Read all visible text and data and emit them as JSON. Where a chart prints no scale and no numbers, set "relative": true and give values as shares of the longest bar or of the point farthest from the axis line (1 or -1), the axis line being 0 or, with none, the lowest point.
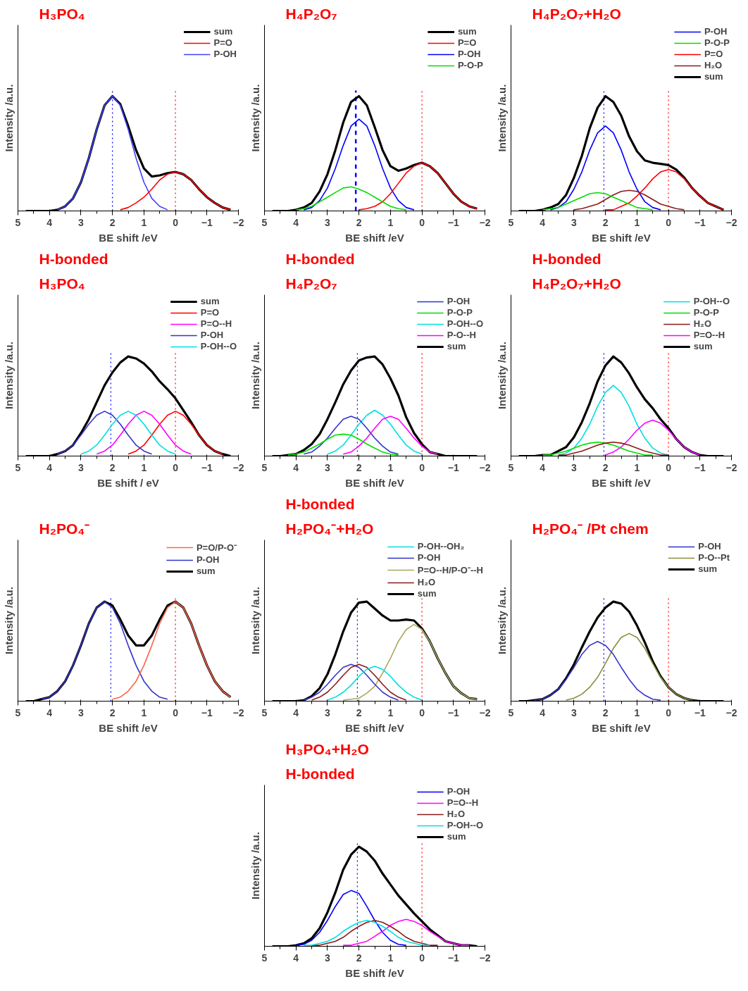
{
  "chart_data": [
    {
      "type": "line",
      "title": "H₃PO₄",
      "xlabel": "BE shift /eV",
      "ylabel": "Intensity /a.u.",
      "relative": true,
      "xlim": [
        5,
        -2
      ],
      "xticks": [
        5,
        4,
        3,
        2,
        1,
        0,
        -1,
        -2
      ],
      "legend": "top right",
      "x": [
        4.75,
        4.5,
        4.25,
        4,
        3.75,
        3.5,
        3.25,
        3,
        2.75,
        2.5,
        2.25,
        2,
        1.75,
        1.5,
        1.25,
        1,
        0.75,
        0.5,
        0.25,
        0,
        -0.25,
        -0.5,
        -0.75,
        -1,
        -1.25,
        -1.5,
        -1.75
      ],
      "ref_lines": [
        {
          "axis": "x",
          "value": 2.0,
          "color": "#0000ff",
          "line_style": "dotted"
        },
        {
          "axis": "x",
          "value": 0,
          "color": "#ff0000",
          "line_style": "dotted"
        }
      ],
      "series": [
        {
          "name": "sum",
          "color": "#000000",
          "values": [
            0,
            0,
            0,
            0,
            0.01,
            0.04,
            0.11,
            0.25,
            0.46,
            0.71,
            0.92,
            1,
            0.93,
            0.74,
            0.53,
            0.37,
            0.3,
            0.31,
            0.33,
            0.34,
            0.32,
            0.27,
            0.19,
            0.12,
            0.07,
            0.03,
            0.01
          ]
        },
        {
          "name": "P=O",
          "color": "#ff0000",
          "values": [
            null,
            null,
            null,
            null,
            null,
            null,
            null,
            null,
            null,
            null,
            null,
            null,
            0.01,
            0.03,
            0.07,
            0.12,
            0.19,
            0.27,
            0.32,
            0.34,
            0.32,
            0.27,
            0.19,
            0.12,
            0.07,
            0.03,
            0.01
          ]
        },
        {
          "name": "P-OH",
          "color": "#4040ff",
          "values": [
            null,
            null,
            null,
            null,
            0.01,
            0.04,
            0.11,
            0.25,
            0.46,
            0.71,
            0.92,
            1,
            0.92,
            0.71,
            0.46,
            0.25,
            0.11,
            0.04,
            0.01,
            null,
            null,
            null,
            null,
            null,
            null,
            null,
            null
          ]
        }
      ]
    },
    {
      "type": "line",
      "title": "H₄P₂O₇",
      "xlabel": "BE shift /eV",
      "ylabel": "Intensity /a.u.",
      "relative": true,
      "xlim": [
        5,
        -2
      ],
      "xticks": [
        5,
        4,
        3,
        2,
        1,
        0,
        -1,
        -2
      ],
      "legend": "top right",
      "x": [
        4.75,
        4.5,
        4.25,
        4,
        3.75,
        3.5,
        3.25,
        3,
        2.75,
        2.5,
        2.25,
        2,
        1.75,
        1.5,
        1.25,
        1,
        0.75,
        0.5,
        0.25,
        0,
        -0.25,
        -0.5,
        -0.75,
        -1,
        -1.25,
        -1.5,
        -1.75
      ],
      "ref_lines": [
        {
          "axis": "x",
          "value": 2.1,
          "color": "#0000ff",
          "line_style": "dashed"
        },
        {
          "axis": "x",
          "value": 0,
          "color": "#ff0000",
          "line_style": "dotted"
        }
      ],
      "series": [
        {
          "name": "sum",
          "color": "#000000",
          "values": [
            0,
            0,
            0,
            0.01,
            0.03,
            0.07,
            0.17,
            0.32,
            0.53,
            0.77,
            0.95,
            1,
            0.92,
            0.73,
            0.53,
            0.39,
            0.35,
            0.37,
            0.4,
            0.42,
            0.39,
            0.33,
            0.24,
            0.15,
            0.08,
            0.04,
            0.02
          ]
        },
        {
          "name": "P=O",
          "color": "#ff0000",
          "values": [
            null,
            null,
            null,
            null,
            null,
            null,
            null,
            null,
            null,
            null,
            null,
            0.01,
            0.02,
            0.04,
            0.08,
            0.15,
            0.24,
            0.33,
            0.39,
            0.42,
            0.39,
            0.33,
            0.24,
            0.15,
            0.08,
            0.04,
            0.02
          ]
        },
        {
          "name": "P-OH",
          "color": "#0000ff",
          "values": [
            null,
            null,
            null,
            null,
            0.01,
            0.03,
            0.09,
            0.2,
            0.37,
            0.57,
            0.74,
            0.8,
            0.74,
            0.57,
            0.37,
            0.2,
            0.09,
            0.03,
            0.01,
            null,
            null,
            null,
            null,
            null,
            null,
            null,
            null
          ]
        },
        {
          "name": "P-O-P",
          "color": "#00dd00",
          "values": [
            null,
            null,
            null,
            0.01,
            0.02,
            0.04,
            0.08,
            0.12,
            0.16,
            0.2,
            0.21,
            0.19,
            0.16,
            0.12,
            0.08,
            0.04,
            0.02,
            0.01,
            null,
            null,
            null,
            null,
            null,
            null,
            null,
            null,
            null
          ]
        }
      ]
    },
    {
      "type": "line",
      "title": "H₄P₂O₇+H₂O",
      "xlabel": "BE shift /eV",
      "ylabel": "Intensity /a.u.",
      "relative": true,
      "xlim": [
        5,
        -2
      ],
      "xticks": [
        5,
        4,
        3,
        2,
        1,
        0,
        -1,
        -2
      ],
      "legend": "top right",
      "x": [
        4.75,
        4.5,
        4.25,
        4,
        3.75,
        3.5,
        3.25,
        3,
        2.75,
        2.5,
        2.25,
        2,
        1.75,
        1.5,
        1.25,
        1,
        0.75,
        0.5,
        0.25,
        0,
        -0.25,
        -0.5,
        -0.75,
        -1,
        -1.25,
        -1.5,
        -1.75
      ],
      "ref_lines": [
        {
          "axis": "x",
          "value": 2.05,
          "color": "#0000ff",
          "line_style": "dotted"
        },
        {
          "axis": "x",
          "value": 0,
          "color": "#ff0000",
          "line_style": "dotted"
        }
      ],
      "series": [
        {
          "name": "P-OH",
          "color": "#0000ff",
          "values": [
            null,
            null,
            null,
            null,
            0.01,
            0.03,
            0.08,
            0.19,
            0.34,
            0.53,
            0.68,
            0.74,
            0.68,
            0.53,
            0.34,
            0.19,
            0.08,
            0.03,
            0.01,
            null,
            null,
            null,
            null,
            null,
            null,
            null,
            null
          ]
        },
        {
          "name": "P-O-P",
          "color": "#00dd00",
          "values": [
            null,
            null,
            null,
            0.01,
            0.02,
            0.03,
            0.06,
            0.09,
            0.12,
            0.15,
            0.16,
            0.15,
            0.12,
            0.09,
            0.06,
            0.03,
            0.02,
            0.01,
            null,
            null,
            null,
            null,
            null,
            null,
            null,
            null,
            null
          ]
        },
        {
          "name": "P=O",
          "color": "#ff0000",
          "values": [
            null,
            null,
            null,
            null,
            null,
            null,
            null,
            null,
            null,
            null,
            null,
            0.01,
            0.01,
            0.04,
            0.07,
            0.13,
            0.2,
            0.28,
            0.34,
            0.36,
            0.34,
            0.28,
            0.2,
            0.13,
            0.07,
            0.04,
            0.01
          ]
        },
        {
          "name": "H₂O",
          "color": "#8b1a1a",
          "values": [
            null,
            null,
            null,
            null,
            null,
            null,
            null,
            0.01,
            0.02,
            0.04,
            0.06,
            0.1,
            0.14,
            0.17,
            0.18,
            0.17,
            0.14,
            0.1,
            0.06,
            0.04,
            0.02,
            0.01,
            null,
            null,
            null,
            null,
            null
          ]
        },
        {
          "name": "sum",
          "color": "#000000",
          "values": [
            0,
            0,
            0,
            0.01,
            0.03,
            0.06,
            0.14,
            0.29,
            0.48,
            0.72,
            0.9,
            1,
            0.95,
            0.83,
            0.65,
            0.52,
            0.44,
            0.42,
            0.41,
            0.4,
            0.36,
            0.29,
            0.2,
            0.13,
            0.07,
            0.04,
            0.01
          ]
        }
      ]
    },
    {
      "type": "line",
      "title": "H-bonded",
      "subtitle": "H₃PO₄",
      "xlabel": "BE shift / eV",
      "ylabel": "Intensity /a.u.",
      "relative": true,
      "xlim": [
        5,
        -2
      ],
      "xticks": [
        5,
        4,
        3,
        2,
        1,
        0,
        -1,
        -2
      ],
      "legend": "top right",
      "x": [
        4.75,
        4.5,
        4.25,
        4,
        3.75,
        3.5,
        3.25,
        3,
        2.75,
        2.5,
        2.25,
        2,
        1.75,
        1.5,
        1.25,
        1,
        0.75,
        0.5,
        0.25,
        0,
        -0.25,
        -0.5,
        -0.75,
        -1,
        -1.25,
        -1.5,
        -1.75
      ],
      "ref_lines": [
        {
          "axis": "x",
          "value": 2.05,
          "color": "#0000ff",
          "line_style": "dotted"
        },
        {
          "axis": "x",
          "value": 0,
          "color": "#ff0000",
          "line_style": "dotted"
        }
      ],
      "series": [
        {
          "name": "sum",
          "color": "#000000",
          "values": [
            0,
            0,
            0,
            0,
            0.02,
            0.05,
            0.11,
            0.23,
            0.37,
            0.54,
            0.71,
            0.84,
            0.94,
            1,
            0.98,
            0.93,
            0.85,
            0.75,
            0.67,
            0.58,
            0.46,
            0.34,
            0.21,
            0.11,
            0.05,
            0.02,
            0
          ]
        },
        {
          "name": "P=O",
          "color": "#ff0000",
          "values": [
            null,
            null,
            null,
            null,
            null,
            null,
            null,
            null,
            null,
            null,
            null,
            null,
            null,
            0.02,
            0.05,
            0.11,
            0.21,
            0.32,
            0.41,
            0.45,
            0.41,
            0.32,
            0.21,
            0.11,
            0.05,
            0.02,
            null
          ]
        },
        {
          "name": "P=O--H",
          "color": "#ff00ff",
          "values": [
            null,
            null,
            null,
            null,
            null,
            null,
            null,
            null,
            null,
            0.02,
            0.05,
            0.11,
            0.21,
            0.32,
            0.41,
            0.45,
            0.41,
            0.32,
            0.21,
            0.11,
            0.05,
            0.02,
            null,
            null,
            null,
            null,
            null
          ]
        },
        {
          "name": "P-OH",
          "color": "#3333cc",
          "values": [
            null,
            null,
            null,
            null,
            0.02,
            0.05,
            0.11,
            0.21,
            0.32,
            0.41,
            0.45,
            0.41,
            0.32,
            0.21,
            0.11,
            0.05,
            0.02,
            null,
            null,
            null,
            null,
            null,
            null,
            null,
            null,
            null,
            null
          ]
        },
        {
          "name": "P-OH--O",
          "color": "#00e0e0",
          "values": [
            null,
            null,
            null,
            null,
            null,
            null,
            null,
            0.02,
            0.05,
            0.11,
            0.21,
            0.32,
            0.41,
            0.45,
            0.41,
            0.32,
            0.21,
            0.11,
            0.05,
            0.02,
            null,
            null,
            null,
            null,
            null,
            null,
            null
          ]
        }
      ]
    },
    {
      "type": "line",
      "title": "H-bonded",
      "subtitle": "H₄P₂O₇",
      "xlabel": "BE shift /eV",
      "ylabel": "Intensity /a.u.",
      "relative": true,
      "xlim": [
        5,
        -2
      ],
      "xticks": [
        5,
        4,
        3,
        2,
        1,
        0,
        -1,
        -2
      ],
      "legend": "top right",
      "x": [
        4.75,
        4.5,
        4.25,
        4,
        3.75,
        3.5,
        3.25,
        3,
        2.75,
        2.5,
        2.25,
        2,
        1.75,
        1.5,
        1.25,
        1,
        0.75,
        0.5,
        0.25,
        0,
        -0.25,
        -0.5,
        -0.75,
        -1,
        -1.25,
        -1.5,
        -1.75
      ],
      "ref_lines": [
        {
          "axis": "x",
          "value": 2.05,
          "color": "#0000ff",
          "line_style": "dotted"
        },
        {
          "axis": "x",
          "value": 0,
          "color": "#ff0000",
          "line_style": "dotted"
        }
      ],
      "series": [
        {
          "name": "P-OH",
          "color": "#3333cc",
          "values": [
            null,
            null,
            null,
            null,
            0.02,
            0.04,
            0.1,
            0.18,
            0.28,
            0.37,
            0.4,
            0.37,
            0.28,
            0.18,
            0.1,
            0.04,
            0.02,
            null,
            null,
            null,
            null,
            null,
            null,
            null,
            null,
            null,
            null
          ]
        },
        {
          "name": "P-O-P",
          "color": "#00dd00",
          "values": [
            null,
            null,
            0.01,
            0.02,
            0.04,
            0.08,
            0.12,
            0.17,
            0.21,
            0.22,
            0.21,
            0.17,
            0.12,
            0.08,
            0.04,
            0.02,
            0.01,
            null,
            null,
            null,
            null,
            null,
            null,
            null,
            null,
            null,
            null
          ]
        },
        {
          "name": "P-OH--O",
          "color": "#00e0e0",
          "values": [
            null,
            null,
            null,
            null,
            null,
            null,
            null,
            0.02,
            0.05,
            0.11,
            0.21,
            0.32,
            0.41,
            0.46,
            0.41,
            0.32,
            0.21,
            0.11,
            0.05,
            0.02,
            null,
            null,
            null,
            null,
            null,
            null,
            null
          ]
        },
        {
          "name": "P-O--H",
          "color": "#ff00ff",
          "values": [
            null,
            null,
            null,
            null,
            null,
            null,
            null,
            null,
            null,
            0.02,
            0.04,
            0.1,
            0.18,
            0.28,
            0.37,
            0.4,
            0.37,
            0.28,
            0.18,
            0.1,
            0.04,
            0.02,
            null,
            null,
            null,
            null,
            null
          ]
        },
        {
          "name": "sum",
          "color": "#000000",
          "values": [
            0,
            0,
            0.01,
            0.02,
            0.06,
            0.12,
            0.22,
            0.37,
            0.54,
            0.72,
            0.86,
            0.96,
            0.99,
            1,
            0.92,
            0.78,
            0.61,
            0.39,
            0.23,
            0.12,
            0.04,
            0.02,
            0,
            0,
            0,
            0,
            0
          ]
        }
      ]
    },
    {
      "type": "line",
      "title": "H-bonded",
      "subtitle": "H₄P₂O₇+H₂O",
      "xlabel": "BE shift /eV",
      "ylabel": "Intensity /a.u.",
      "relative": true,
      "xlim": [
        5,
        -2
      ],
      "xticks": [
        5,
        4,
        3,
        2,
        1,
        0,
        -1,
        -2
      ],
      "legend": "top right",
      "x": [
        4.75,
        4.5,
        4.25,
        4,
        3.75,
        3.5,
        3.25,
        3,
        2.75,
        2.5,
        2.25,
        2,
        1.75,
        1.5,
        1.25,
        1,
        0.75,
        0.5,
        0.25,
        0,
        -0.25,
        -0.5,
        -0.75,
        -1,
        -1.25,
        -1.5,
        -1.75
      ],
      "ref_lines": [
        {
          "axis": "x",
          "value": 2.05,
          "color": "#0000ff",
          "line_style": "dotted"
        },
        {
          "axis": "x",
          "value": 0,
          "color": "#ff0000",
          "line_style": "dotted"
        }
      ],
      "series": [
        {
          "name": "P-OH--O",
          "color": "#00e0e0",
          "values": [
            null,
            null,
            null,
            null,
            null,
            0.01,
            0.03,
            0.08,
            0.18,
            0.32,
            0.5,
            0.64,
            0.71,
            0.64,
            0.5,
            0.32,
            0.18,
            0.08,
            0.03,
            0.01,
            null,
            null,
            null,
            null,
            null,
            null,
            null
          ]
        },
        {
          "name": "P-O-P",
          "color": "#00dd00",
          "values": [
            null,
            null,
            null,
            0.01,
            0.01,
            0.03,
            0.05,
            0.08,
            0.11,
            0.13,
            0.14,
            0.13,
            0.11,
            0.08,
            0.05,
            0.03,
            0.01,
            0.01,
            null,
            null,
            null,
            null,
            null,
            null,
            null,
            null,
            null
          ]
        },
        {
          "name": "H₂O",
          "color": "#8b1a1a",
          "values": [
            null,
            null,
            null,
            null,
            null,
            0.01,
            0.01,
            0.03,
            0.05,
            0.08,
            0.11,
            0.13,
            0.14,
            0.13,
            0.11,
            0.08,
            0.05,
            0.03,
            0.01,
            0.01,
            null,
            null,
            null,
            null,
            null,
            null,
            null
          ]
        },
        {
          "name": "P=O--H",
          "color": "#ff00ff",
          "values": [
            null,
            null,
            null,
            null,
            null,
            null,
            null,
            null,
            null,
            null,
            null,
            0.01,
            0.04,
            0.09,
            0.17,
            0.26,
            0.33,
            0.36,
            0.33,
            0.26,
            0.17,
            0.09,
            0.04,
            0.01,
            null,
            null,
            null
          ]
        },
        {
          "name": "sum",
          "color": "#000000",
          "values": [
            0,
            0,
            0,
            0.01,
            0.01,
            0.05,
            0.09,
            0.19,
            0.34,
            0.53,
            0.75,
            0.91,
            1,
            0.94,
            0.83,
            0.69,
            0.57,
            0.48,
            0.37,
            0.28,
            0.17,
            0.09,
            0.04,
            0.01,
            0,
            0,
            0
          ]
        }
      ]
    },
    {
      "type": "line",
      "title": "H₂PO₄⁻",
      "xlabel": "BE shift /eV",
      "ylabel": "Intensity /a.u.",
      "relative": true,
      "xlim": [
        5,
        -2
      ],
      "xticks": [
        5,
        4,
        3,
        2,
        1,
        0,
        -1,
        -2
      ],
      "legend": "top right",
      "x": [
        4.75,
        4.5,
        4.25,
        4,
        3.75,
        3.5,
        3.25,
        3,
        2.75,
        2.5,
        2.25,
        2,
        1.75,
        1.5,
        1.25,
        1,
        0.75,
        0.5,
        0.25,
        0,
        -0.25,
        -0.5,
        -0.75,
        -1,
        -1.25,
        -1.5,
        -1.75
      ],
      "ref_lines": [
        {
          "axis": "x",
          "value": 2.05,
          "color": "#0000ff",
          "line_style": "dotted"
        },
        {
          "axis": "x",
          "value": 0,
          "color": "#ff0000",
          "line_style": "dotted"
        }
      ],
      "series": [
        {
          "name": "P=O/P-O⁻",
          "color": "#ff6347",
          "values": [
            null,
            null,
            null,
            null,
            null,
            null,
            null,
            null,
            null,
            null,
            null,
            0.02,
            0.04,
            0.1,
            0.2,
            0.36,
            0.56,
            0.78,
            0.94,
            1,
            0.94,
            0.78,
            0.56,
            0.36,
            0.2,
            0.1,
            0.04
          ]
        },
        {
          "name": "P-OH",
          "color": "#3333cc",
          "values": [
            null,
            null,
            0.02,
            0.04,
            0.1,
            0.2,
            0.36,
            0.56,
            0.78,
            0.94,
            1,
            0.94,
            0.78,
            0.56,
            0.36,
            0.2,
            0.1,
            0.04,
            0.02,
            null,
            null,
            null,
            null,
            null,
            null,
            null,
            null
          ]
        },
        {
          "name": "sum",
          "color": "#000000",
          "values": [
            0,
            0,
            0.02,
            0.04,
            0.1,
            0.2,
            0.36,
            0.56,
            0.78,
            0.94,
            1,
            0.96,
            0.82,
            0.66,
            0.56,
            0.56,
            0.66,
            0.82,
            0.96,
            1,
            0.94,
            0.78,
            0.56,
            0.36,
            0.2,
            0.1,
            0.04
          ]
        }
      ]
    },
    {
      "type": "line",
      "title": "H-bonded",
      "subtitle": "H₂PO₄⁻+H₂O",
      "xlabel": "BE shift /eV",
      "ylabel": "Intensity /a.u.",
      "relative": true,
      "xlim": [
        5,
        -2
      ],
      "xticks": [
        5,
        4,
        3,
        2,
        1,
        0,
        -1,
        -2
      ],
      "legend": "top right",
      "x": [
        4.75,
        4.5,
        4.25,
        4,
        3.75,
        3.5,
        3.25,
        3,
        2.75,
        2.5,
        2.25,
        2,
        1.75,
        1.5,
        1.25,
        1,
        0.75,
        0.5,
        0.25,
        0,
        -0.25,
        -0.5,
        -0.75,
        -1,
        -1.25,
        -1.5,
        -1.75
      ],
      "ref_lines": [
        {
          "axis": "x",
          "value": 2.05,
          "color": "#0000ff",
          "line_style": "dotted"
        },
        {
          "axis": "x",
          "value": 0,
          "color": "#ff0000",
          "line_style": "dotted"
        }
      ],
      "series": [
        {
          "name": "P-OH--OH₂",
          "color": "#00e0e0",
          "values": [
            null,
            null,
            null,
            null,
            null,
            null,
            null,
            0.01,
            0.04,
            0.09,
            0.16,
            0.25,
            0.32,
            0.35,
            0.32,
            0.25,
            0.16,
            0.09,
            0.04,
            0.01,
            null,
            null,
            null,
            null,
            null,
            null,
            null
          ]
        },
        {
          "name": "P-OH",
          "color": "#3333cc",
          "values": [
            null,
            null,
            null,
            null,
            0.01,
            0.04,
            0.09,
            0.17,
            0.26,
            0.34,
            0.37,
            0.34,
            0.26,
            0.17,
            0.09,
            0.04,
            0.01,
            null,
            null,
            null,
            null,
            null,
            null,
            null,
            null,
            null,
            null
          ]
        },
        {
          "name": "P=O--H/P-O⁻--H",
          "color": "#a8a860",
          "values": [
            null,
            null,
            null,
            null,
            null,
            null,
            null,
            null,
            null,
            0.01,
            0.02,
            0.03,
            0.08,
            0.15,
            0.28,
            0.43,
            0.6,
            0.72,
            0.77,
            0.72,
            0.6,
            0.43,
            0.28,
            0.15,
            0.08,
            0.03,
            0.02
          ]
        },
        {
          "name": "H₂O",
          "color": "#8b1a1a",
          "values": [
            null,
            null,
            null,
            null,
            null,
            0.01,
            0.04,
            0.09,
            0.17,
            0.26,
            0.34,
            0.37,
            0.34,
            0.26,
            0.17,
            0.09,
            0.04,
            0.01,
            null,
            null,
            null,
            null,
            null,
            null,
            null,
            null,
            null
          ]
        },
        {
          "name": "sum",
          "color": "#000000",
          "values": [
            0,
            0,
            0,
            0,
            0.01,
            0.05,
            0.13,
            0.27,
            0.47,
            0.7,
            0.89,
            0.99,
            1,
            0.93,
            0.86,
            0.81,
            0.81,
            0.82,
            0.81,
            0.73,
            0.6,
            0.43,
            0.28,
            0.15,
            0.08,
            0.03,
            0.02
          ]
        }
      ]
    },
    {
      "type": "line",
      "title": "H₂PO₄⁻ /Pt chem",
      "xlabel": "BE shift /eV",
      "ylabel": "Intensity /a.u.",
      "relative": true,
      "xlim": [
        5,
        -2
      ],
      "xticks": [
        5,
        4,
        3,
        2,
        1,
        0,
        -1,
        -2
      ],
      "legend": "top right",
      "x": [
        4.75,
        4.5,
        4.25,
        4,
        3.75,
        3.5,
        3.25,
        3,
        2.75,
        2.5,
        2.25,
        2,
        1.75,
        1.5,
        1.25,
        1,
        0.75,
        0.5,
        0.25,
        0,
        -0.25,
        -0.5,
        -0.75,
        -1,
        -1.25,
        -1.5,
        -1.75
      ],
      "ref_lines": [
        {
          "axis": "x",
          "value": 2.05,
          "color": "#0000ff",
          "line_style": "dotted"
        },
        {
          "axis": "x",
          "value": 0,
          "color": "#ff0000",
          "line_style": "dotted"
        }
      ],
      "series": [
        {
          "name": "P-OH",
          "color": "#3333cc",
          "values": [
            null,
            null,
            0.01,
            0.02,
            0.06,
            0.12,
            0.22,
            0.34,
            0.47,
            0.56,
            0.6,
            0.56,
            0.47,
            0.34,
            0.22,
            0.12,
            0.06,
            0.02,
            0.01,
            null,
            null,
            null,
            null,
            null,
            null,
            null,
            null
          ]
        },
        {
          "name": "P-O--Pt",
          "color": "#8c8c3c",
          "values": [
            null,
            null,
            null,
            null,
            null,
            null,
            0.01,
            0.03,
            0.07,
            0.14,
            0.24,
            0.38,
            0.53,
            0.64,
            0.68,
            0.64,
            0.53,
            0.38,
            0.24,
            0.14,
            0.07,
            0.03,
            0.01,
            null,
            null,
            null,
            null
          ]
        },
        {
          "name": "sum",
          "color": "#000000",
          "values": [
            0,
            0,
            0.01,
            0.02,
            0.06,
            0.12,
            0.23,
            0.37,
            0.54,
            0.7,
            0.84,
            0.94,
            1,
            0.98,
            0.9,
            0.76,
            0.59,
            0.4,
            0.25,
            0.14,
            0.07,
            0.03,
            0.01,
            0,
            0,
            0,
            0
          ]
        }
      ]
    },
    {
      "type": "line",
      "title": "H₃PO₄+H₂O",
      "subtitle": "H-bonded",
      "xlabel": "BE shift /eV",
      "ylabel": "Intensity /a.u.",
      "relative": true,
      "xlim": [
        5,
        -2
      ],
      "xticks": [
        5,
        4,
        3,
        2,
        1,
        0,
        -1,
        -2
      ],
      "legend": "top right",
      "x": [
        4.75,
        4.5,
        4.25,
        4,
        3.75,
        3.5,
        3.25,
        3,
        2.75,
        2.5,
        2.25,
        2,
        1.75,
        1.5,
        1.25,
        1,
        0.75,
        0.5,
        0.25,
        0,
        -0.25,
        -0.5,
        -0.75,
        -1,
        -1.25,
        -1.5,
        -1.75
      ],
      "ref_lines": [
        {
          "axis": "x",
          "value": 2.05,
          "color": "#0000ff",
          "line_style": "dotted"
        },
        {
          "axis": "x",
          "value": 0,
          "color": "#ff0000",
          "line_style": "dotted"
        }
      ],
      "series": [
        {
          "name": "P-OH",
          "color": "#0000ff",
          "values": [
            null,
            null,
            null,
            0.01,
            0.02,
            0.06,
            0.14,
            0.26,
            0.4,
            0.52,
            0.56,
            0.53,
            0.4,
            0.26,
            0.14,
            0.06,
            0.02,
            0.01,
            null,
            null,
            null,
            null,
            null,
            null,
            null,
            null,
            null
          ]
        },
        {
          "name": "P=O--H",
          "color": "#ff00ff",
          "values": [
            null,
            null,
            null,
            null,
            null,
            null,
            null,
            null,
            null,
            0.01,
            0.01,
            0.03,
            0.05,
            0.1,
            0.15,
            0.21,
            0.25,
            0.27,
            0.25,
            0.21,
            0.15,
            0.1,
            0.05,
            0.03,
            0.01,
            0.01,
            null
          ]
        },
        {
          "name": "H₂O",
          "color": "#8b1a1a",
          "values": [
            null,
            null,
            null,
            null,
            null,
            0.01,
            0.01,
            0.03,
            0.05,
            0.09,
            0.15,
            0.2,
            0.24,
            0.26,
            0.24,
            0.2,
            0.15,
            0.09,
            0.05,
            0.03,
            0.01,
            0.01,
            null,
            null,
            null,
            null,
            null
          ]
        },
        {
          "name": "P-OH--O",
          "color": "#00e0e0",
          "values": [
            null,
            null,
            null,
            null,
            0.01,
            0.01,
            0.03,
            0.05,
            0.09,
            0.15,
            0.2,
            0.24,
            0.26,
            0.24,
            0.2,
            0.15,
            0.09,
            0.05,
            0.03,
            0.01,
            0.01,
            null,
            null,
            null,
            null,
            null,
            null
          ]
        },
        {
          "name": "sum",
          "color": "#000000",
          "values": [
            0,
            0,
            0,
            0.01,
            0.03,
            0.08,
            0.18,
            0.34,
            0.54,
            0.77,
            0.92,
            1,
            0.95,
            0.86,
            0.73,
            0.62,
            0.51,
            0.42,
            0.33,
            0.25,
            0.17,
            0.11,
            0.05,
            0.03,
            0.01,
            0.01,
            0
          ]
        }
      ]
    }
  ]
}
